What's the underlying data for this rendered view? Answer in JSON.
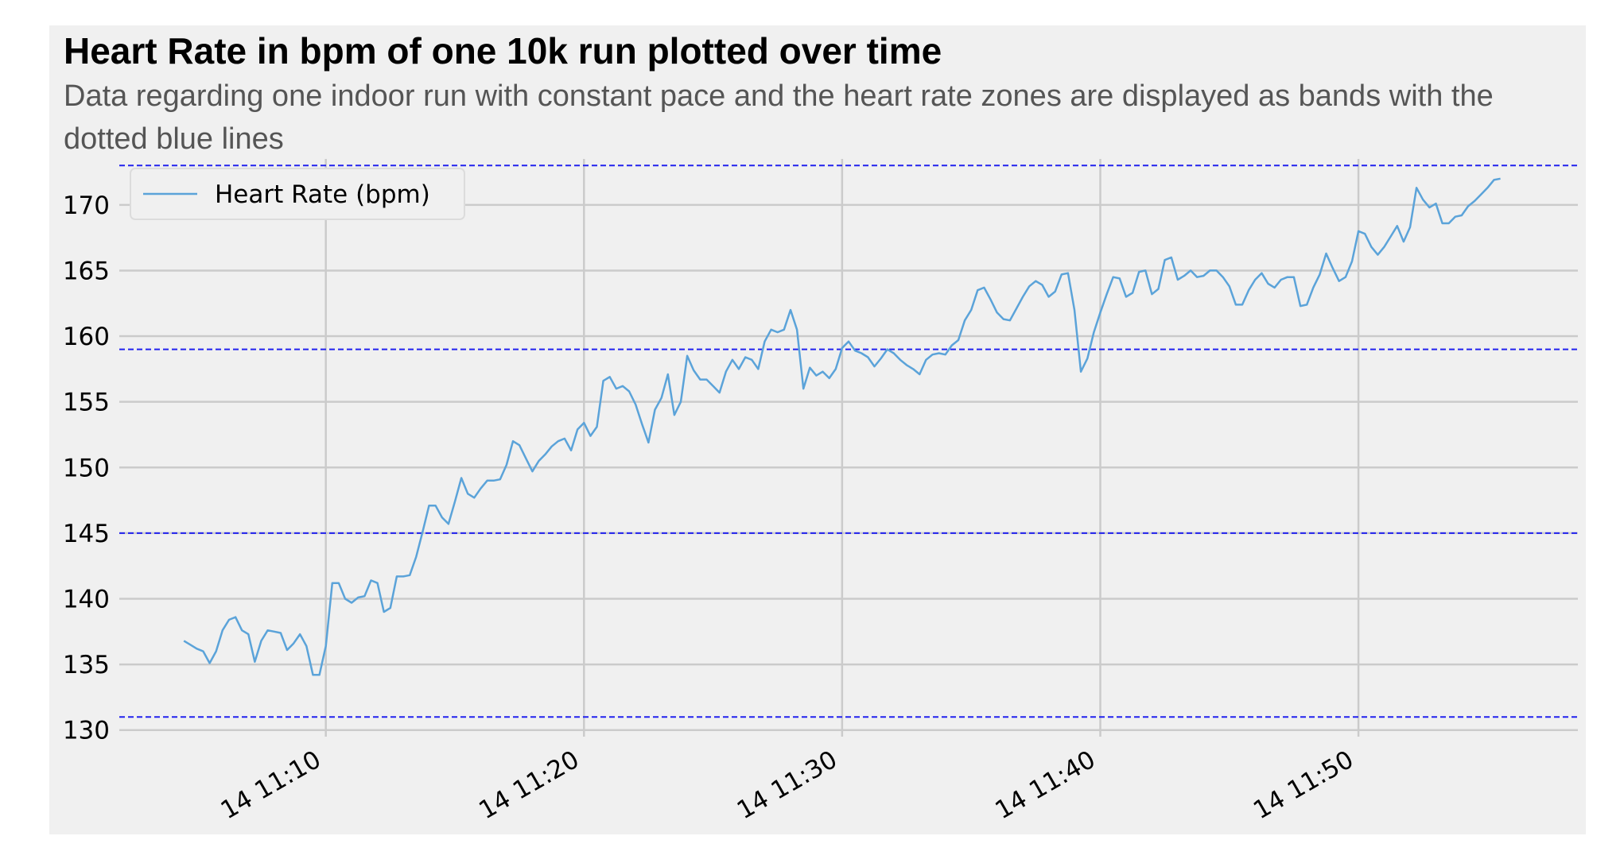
{
  "colors": {
    "background": "#f0f0f0",
    "grid": "#cbcbcb",
    "line": "#5ba3d9",
    "zone_line": "#2222ee",
    "text": "#000000",
    "subtitle": "#555555"
  },
  "chart_data": {
    "type": "line",
    "title": "Heart Rate in bpm of one 10k run plotted over time",
    "subtitle": "Data regarding one indoor run with constant pace and the heart rate zones are displayed as bands with the dotted blue lines",
    "xlabel": "",
    "ylabel": "",
    "x_axis": "time",
    "xlim": [
      "14 11:02:00",
      "14 11:58:30"
    ],
    "ylim": [
      129.5,
      173.5
    ],
    "x_ticks": [
      {
        "value": "14 11:10:00",
        "label": "14 11:10"
      },
      {
        "value": "14 11:20:00",
        "label": "14 11:20"
      },
      {
        "value": "14 11:30:00",
        "label": "14 11:30"
      },
      {
        "value": "14 11:40:00",
        "label": "14 11:40"
      },
      {
        "value": "14 11:50:00",
        "label": "14 11:50"
      }
    ],
    "y_ticks": [
      130,
      135,
      140,
      145,
      150,
      155,
      160,
      165,
      170
    ],
    "grid": true,
    "legend": {
      "position": "top-left",
      "entries": [
        "Heart Rate (bpm)"
      ]
    },
    "zone_lines": [
      131,
      145,
      159,
      173
    ],
    "series": [
      {
        "name": "Heart Rate (bpm)",
        "x": [
          "14 11:04:30",
          "14 11:04:45",
          "14 11:05:00",
          "14 11:05:15",
          "14 11:05:30",
          "14 11:05:45",
          "14 11:06:00",
          "14 11:06:15",
          "14 11:06:30",
          "14 11:06:45",
          "14 11:07:00",
          "14 11:07:15",
          "14 11:07:30",
          "14 11:07:45",
          "14 11:08:00",
          "14 11:08:15",
          "14 11:08:30",
          "14 11:08:45",
          "14 11:09:00",
          "14 11:09:15",
          "14 11:09:30",
          "14 11:09:45",
          "14 11:10:00",
          "14 11:10:15",
          "14 11:10:30",
          "14 11:10:45",
          "14 11:11:00",
          "14 11:11:15",
          "14 11:11:30",
          "14 11:11:45",
          "14 11:12:00",
          "14 11:12:15",
          "14 11:12:30",
          "14 11:12:45",
          "14 11:13:00",
          "14 11:13:15",
          "14 11:13:30",
          "14 11:13:45",
          "14 11:14:00",
          "14 11:14:15",
          "14 11:14:30",
          "14 11:14:45",
          "14 11:15:00",
          "14 11:15:15",
          "14 11:15:30",
          "14 11:15:45",
          "14 11:16:00",
          "14 11:16:15",
          "14 11:16:30",
          "14 11:16:45",
          "14 11:17:00",
          "14 11:17:15",
          "14 11:17:30",
          "14 11:17:45",
          "14 11:18:00",
          "14 11:18:15",
          "14 11:18:30",
          "14 11:18:45",
          "14 11:19:00",
          "14 11:19:15",
          "14 11:19:30",
          "14 11:19:45",
          "14 11:20:00",
          "14 11:20:15",
          "14 11:20:30",
          "14 11:20:45",
          "14 11:21:00",
          "14 11:21:15",
          "14 11:21:30",
          "14 11:21:45",
          "14 11:22:00",
          "14 11:22:15",
          "14 11:22:30",
          "14 11:22:45",
          "14 11:23:00",
          "14 11:23:15",
          "14 11:23:30",
          "14 11:23:45",
          "14 11:24:00",
          "14 11:24:15",
          "14 11:24:30",
          "14 11:24:45",
          "14 11:25:00",
          "14 11:25:15",
          "14 11:25:30",
          "14 11:25:45",
          "14 11:26:00",
          "14 11:26:15",
          "14 11:26:30",
          "14 11:26:45",
          "14 11:27:00",
          "14 11:27:15",
          "14 11:27:30",
          "14 11:27:45",
          "14 11:28:00",
          "14 11:28:15",
          "14 11:28:30",
          "14 11:28:45",
          "14 11:29:00",
          "14 11:29:15",
          "14 11:29:30",
          "14 11:29:45",
          "14 11:30:00",
          "14 11:30:15",
          "14 11:30:30",
          "14 11:30:45",
          "14 11:31:00",
          "14 11:31:15",
          "14 11:31:30",
          "14 11:31:45",
          "14 11:32:00",
          "14 11:32:15",
          "14 11:32:30",
          "14 11:32:45",
          "14 11:33:00",
          "14 11:33:15",
          "14 11:33:30",
          "14 11:33:45",
          "14 11:34:00",
          "14 11:34:15",
          "14 11:34:30",
          "14 11:34:45",
          "14 11:35:00",
          "14 11:35:15",
          "14 11:35:30",
          "14 11:35:45",
          "14 11:36:00",
          "14 11:36:15",
          "14 11:36:30",
          "14 11:36:45",
          "14 11:37:00",
          "14 11:37:15",
          "14 11:37:30",
          "14 11:37:45",
          "14 11:38:00",
          "14 11:38:15",
          "14 11:38:30",
          "14 11:38:45",
          "14 11:39:00",
          "14 11:39:15",
          "14 11:39:30",
          "14 11:39:45",
          "14 11:40:00",
          "14 11:40:15",
          "14 11:40:30",
          "14 11:40:45",
          "14 11:41:00",
          "14 11:41:15",
          "14 11:41:30",
          "14 11:41:45",
          "14 11:42:00",
          "14 11:42:15",
          "14 11:42:30",
          "14 11:42:45",
          "14 11:43:00",
          "14 11:43:15",
          "14 11:43:30",
          "14 11:43:45",
          "14 11:44:00",
          "14 11:44:15",
          "14 11:44:30",
          "14 11:44:45",
          "14 11:45:00",
          "14 11:45:15",
          "14 11:45:30",
          "14 11:45:45",
          "14 11:46:00",
          "14 11:46:15",
          "14 11:46:30",
          "14 11:46:45",
          "14 11:47:00",
          "14 11:47:15",
          "14 11:47:30",
          "14 11:47:45",
          "14 11:48:00",
          "14 11:48:15",
          "14 11:48:30",
          "14 11:48:45",
          "14 11:49:00",
          "14 11:49:15",
          "14 11:49:30",
          "14 11:49:45",
          "14 11:50:00",
          "14 11:50:15",
          "14 11:50:30",
          "14 11:50:45",
          "14 11:51:00",
          "14 11:51:15",
          "14 11:51:30",
          "14 11:51:45",
          "14 11:52:00",
          "14 11:52:15",
          "14 11:52:30",
          "14 11:52:45",
          "14 11:53:00",
          "14 11:53:15",
          "14 11:53:30",
          "14 11:53:45",
          "14 11:54:00",
          "14 11:54:15",
          "14 11:54:30",
          "14 11:54:45",
          "14 11:55:00",
          "14 11:55:15",
          "14 11:55:30"
        ],
        "values": [
          136.8,
          136.5,
          136.2,
          136.0,
          135.1,
          136.0,
          137.6,
          138.4,
          138.6,
          137.6,
          137.3,
          135.2,
          136.8,
          137.6,
          137.5,
          137.4,
          136.1,
          136.6,
          137.3,
          136.4,
          134.2,
          134.2,
          136.4,
          141.2,
          141.2,
          140.0,
          139.7,
          140.1,
          140.2,
          141.4,
          141.2,
          139.0,
          139.3,
          141.7,
          141.7,
          141.8,
          143.2,
          145.1,
          147.1,
          147.1,
          146.2,
          145.7,
          147.4,
          149.2,
          148.0,
          147.7,
          148.4,
          149.0,
          149.0,
          149.1,
          150.2,
          152.0,
          151.7,
          150.7,
          149.7,
          150.5,
          151.0,
          151.6,
          152.0,
          152.2,
          151.3,
          152.9,
          153.4,
          152.4,
          153.1,
          156.6,
          156.9,
          156.0,
          156.2,
          155.8,
          154.8,
          153.3,
          151.9,
          154.4,
          155.3,
          157.1,
          154.0,
          155.0,
          158.5,
          157.4,
          156.7,
          156.7,
          156.2,
          155.7,
          157.3,
          158.2,
          157.5,
          158.4,
          158.2,
          157.5,
          159.6,
          160.5,
          160.3,
          160.5,
          162.0,
          160.5,
          156.0,
          157.6,
          157.0,
          157.3,
          156.8,
          157.5,
          159.1,
          159.6,
          158.9,
          158.7,
          158.4,
          157.7,
          158.3,
          159.0,
          158.7,
          158.2,
          157.8,
          157.5,
          157.1,
          158.2,
          158.6,
          158.7,
          158.6,
          159.3,
          159.7,
          161.2,
          162.0,
          163.5,
          163.7,
          162.8,
          161.8,
          161.3,
          161.2,
          162.1,
          163.0,
          163.8,
          164.2,
          163.9,
          163.0,
          163.4,
          164.7,
          164.8,
          162.0,
          157.3,
          158.3,
          160.3,
          161.8,
          163.2,
          164.5,
          164.4,
          163.0,
          163.3,
          164.9,
          165.0,
          163.2,
          163.6,
          165.8,
          166.0,
          164.3,
          164.6,
          165.0,
          164.5,
          164.6,
          165.0,
          165.0,
          164.5,
          163.8,
          162.4,
          162.4,
          163.5,
          164.3,
          164.8,
          164.0,
          163.7,
          164.3,
          164.5,
          164.5,
          162.3,
          162.4,
          163.7,
          164.7,
          166.3,
          165.2,
          164.2,
          164.5,
          165.7,
          168.0,
          167.8,
          166.8,
          166.2,
          166.8,
          167.6,
          168.4,
          167.2,
          168.3,
          171.3,
          170.4,
          169.8,
          170.1,
          168.6,
          168.6,
          169.1,
          169.2,
          169.9,
          170.3,
          170.8,
          171.3,
          171.9,
          172.0
        ]
      }
    ]
  }
}
